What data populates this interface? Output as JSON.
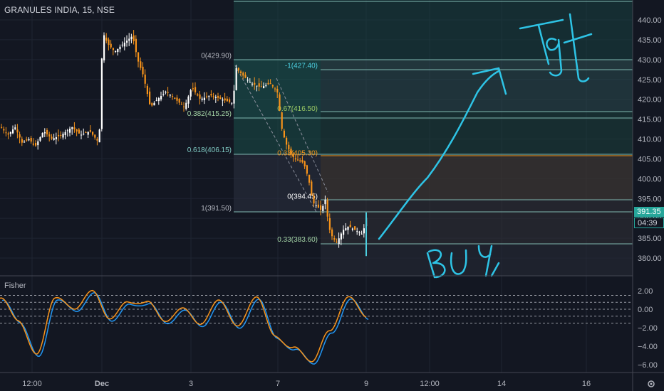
{
  "header": {
    "symbol_title": "GRANULES INDIA, 15, NSE"
  },
  "indicator": {
    "title": "Fisher"
  },
  "price_tag": {
    "price": "391.35",
    "timer": "04:39"
  },
  "colors": {
    "background": "#131722",
    "candle_up": "#ffffff",
    "candle_down": "#f7931a",
    "fib_line": "#7fb8b0",
    "annotation": "#2ec4e6",
    "fisher_line": "#f7931a",
    "fisher_trigger": "#2196f3",
    "text": "#b2b5be"
  },
  "chart_data": [
    {
      "type": "line",
      "title": "GRANULES INDIA, 15, NSE",
      "y_axis": {
        "ticks": [
          "440.00",
          "435.00",
          "430.00",
          "425.00",
          "420.00",
          "415.00",
          "410.00",
          "405.00",
          "400.00",
          "395.00",
          "390.00",
          "385.00",
          "380.00"
        ],
        "ylim": [
          377.5,
          442.5
        ]
      },
      "x_axis": {
        "ticks": [
          "12:00",
          "Dec",
          "3",
          "7",
          "9",
          "12:00",
          "14",
          "16"
        ]
      },
      "series": [
        {
          "name": "",
          "x": [
            "12:00",
            "",
            "",
            "Dec",
            "",
            "",
            "3",
            "",
            "",
            "7",
            "",
            "9"
          ],
          "values": [
            413,
            410.5,
            409,
            437,
            432,
            418,
            420,
            419,
            428,
            420,
            407,
            386
          ]
        }
      ],
      "fib_levels": [
        {
          "label": "0(429.90)",
          "value": 429.9
        },
        {
          "label": "0.382(415.25)",
          "value": 415.25
        },
        {
          "label": "0.618(406.15)",
          "value": 406.15
        },
        {
          "label": "1(391.50)",
          "value": 391.5
        },
        {
          "label": "-1(427.40)",
          "value": 427.4
        },
        {
          "label": "0.67(416.50)",
          "value": 416.5
        },
        {
          "label": "0.33(405.30)",
          "value": 405.3
        },
        {
          "label": "0(394.45)",
          "value": 394.45
        },
        {
          "label": "0.33(383.60)",
          "value": 383.6
        }
      ],
      "annotations": [
        "Tgt",
        "BUY"
      ],
      "grid": true
    },
    {
      "type": "line",
      "title": "Fisher",
      "y_axis": {
        "ticks": [
          "2.00",
          "0.00",
          "−2.00",
          "−4.00",
          "−6.00"
        ],
        "ylim": [
          -6.9,
          2.5
        ]
      },
      "reference_levels": [
        1.5,
        0.75,
        0,
        -0.75,
        -1.5
      ],
      "series": [
        {
          "name": "",
          "values": [
            1.2,
            -1.5,
            -4.5,
            1.0,
            0.0,
            2.3,
            -1.4,
            1.0,
            0.9,
            -1.6,
            0.5,
            -1.8,
            0.9,
            -1.5,
            1.0,
            -2.7,
            -4.0,
            -6.0,
            -2.0,
            1.2,
            -1.0
          ]
        }
      ],
      "grid": true
    }
  ]
}
